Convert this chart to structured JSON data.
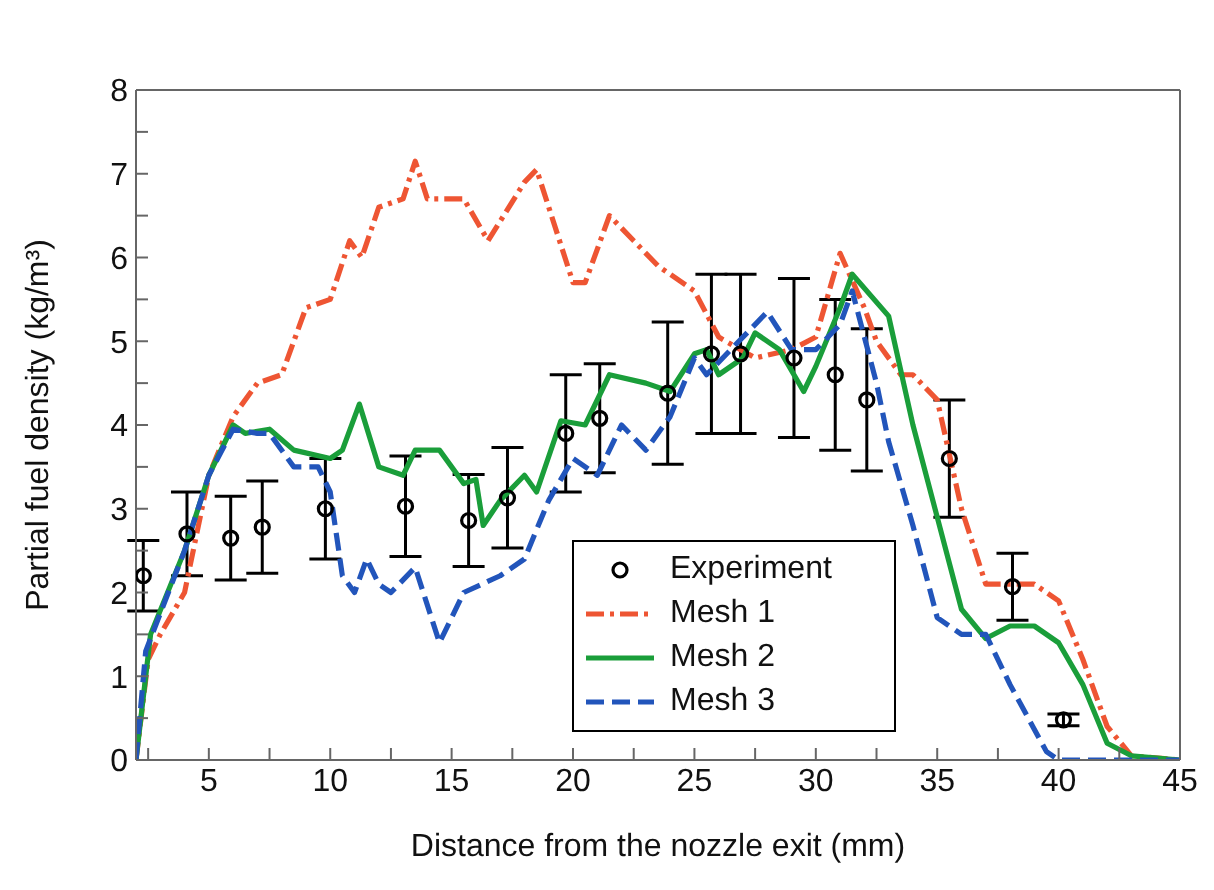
{
  "chart_data": {
    "type": "line",
    "xlabel": "Distance from the nozzle exit (mm)",
    "ylabel": "Partial fuel density (kg/m³)",
    "xlim": [
      2,
      45
    ],
    "ylim": [
      0,
      8
    ],
    "xticks": [
      {
        "value": 2.5,
        "label": null
      },
      5,
      {
        "value": 7.5,
        "label": null
      },
      10,
      {
        "value": 12.5,
        "label": null
      },
      15,
      {
        "value": 17.5,
        "label": null
      },
      20,
      {
        "value": 22.5,
        "label": null
      },
      25,
      {
        "value": 27.5,
        "label": null
      },
      30,
      {
        "value": 32.5,
        "label": null
      },
      35,
      {
        "value": 37.5,
        "label": null
      },
      40,
      {
        "value": 42.5,
        "label": null
      },
      45
    ],
    "yticks": [
      0,
      {
        "value": 0.5,
        "label": null
      },
      1,
      {
        "value": 1.5,
        "label": null
      },
      2,
      {
        "value": 2.5,
        "label": null
      },
      3,
      {
        "value": 3.5,
        "label": null
      },
      4,
      {
        "value": 4.5,
        "label": null
      },
      5,
      {
        "value": 5.5,
        "label": null
      },
      6,
      {
        "value": 6.5,
        "label": null
      },
      7,
      {
        "value": 7.5,
        "label": null
      },
      8
    ],
    "grid": false,
    "legend": "bottom",
    "series": [
      {
        "name": "Experiment",
        "type": "scatter",
        "marker": "circle",
        "color": "#000000",
        "x": [
          2.3,
          4.1,
          5.9,
          7.2,
          9.8,
          13.1,
          15.7,
          17.3,
          19.7,
          21.1,
          23.9,
          25.7,
          26.9,
          29.1,
          30.8,
          32.1,
          35.5,
          38.1,
          40.2
        ],
        "values": [
          2.2,
          2.7,
          2.65,
          2.78,
          3.0,
          3.03,
          2.86,
          3.13,
          3.9,
          4.08,
          4.38,
          4.85,
          4.85,
          4.8,
          4.6,
          4.3,
          3.6,
          2.07,
          0.48
        ],
        "errors": [
          0.42,
          0.5,
          0.5,
          0.55,
          0.6,
          0.6,
          0.55,
          0.6,
          0.7,
          0.65,
          0.85,
          0.95,
          0.95,
          0.95,
          0.9,
          0.85,
          0.7,
          0.4,
          0.07
        ]
      },
      {
        "name": "Mesh 1",
        "marker": "none",
        "line_style": "dashdot",
        "color": "#ee5533",
        "x": [
          2,
          2.5,
          3,
          4,
          5,
          6,
          7,
          8,
          9,
          10,
          10.8,
          11.3,
          12,
          13,
          13.5,
          14,
          15.5,
          16.5,
          18,
          18.5,
          20,
          20.5,
          21.5,
          22.5,
          23.5,
          25,
          26,
          27.5,
          29,
          30,
          31,
          32,
          32.5,
          33.5,
          34,
          35,
          36,
          37,
          38,
          39,
          40,
          41,
          42,
          43,
          45
        ],
        "values": [
          0,
          1.2,
          1.5,
          2.0,
          3.4,
          4.1,
          4.5,
          4.6,
          5.4,
          5.5,
          6.2,
          6.0,
          6.6,
          6.7,
          7.15,
          6.7,
          6.7,
          6.2,
          6.9,
          7.05,
          5.7,
          5.7,
          6.5,
          6.2,
          5.9,
          5.6,
          5.05,
          4.8,
          4.9,
          5.05,
          6.05,
          5.4,
          5.0,
          4.6,
          4.6,
          4.3,
          3.0,
          2.1,
          2.1,
          2.1,
          1.9,
          1.2,
          0.4,
          0.05,
          0
        ]
      },
      {
        "name": "Mesh 2",
        "marker": "none",
        "line_style": "solid",
        "color": "#1a9e3a",
        "x": [
          2,
          2.6,
          4,
          5,
          6,
          6.5,
          7.5,
          8.5,
          10,
          10.5,
          11.2,
          12,
          13,
          13.5,
          14.5,
          15.5,
          16,
          16.3,
          17,
          18,
          18.5,
          19.5,
          20.5,
          21.5,
          23,
          24,
          25,
          25.5,
          26,
          27,
          27.5,
          28.5,
          29.5,
          30,
          31,
          31.5,
          33,
          34,
          35,
          36,
          37,
          38,
          39,
          40,
          41,
          42,
          43,
          45
        ],
        "values": [
          0,
          1.5,
          2.5,
          3.4,
          4.0,
          3.9,
          3.95,
          3.7,
          3.6,
          3.7,
          4.25,
          3.5,
          3.4,
          3.7,
          3.7,
          3.3,
          3.35,
          2.8,
          3.1,
          3.4,
          3.2,
          4.05,
          4.0,
          4.6,
          4.5,
          4.4,
          4.85,
          4.9,
          4.6,
          4.8,
          5.1,
          4.9,
          4.4,
          4.7,
          5.4,
          5.8,
          5.3,
          4.0,
          2.9,
          1.8,
          1.45,
          1.6,
          1.6,
          1.4,
          0.9,
          0.2,
          0.05,
          0
        ]
      },
      {
        "name": "Mesh 3",
        "marker": "none",
        "line_style": "dashed",
        "color": "#2255bb",
        "x": [
          2,
          2.4,
          4,
          5,
          6,
          7,
          7.5,
          8.5,
          9.5,
          10,
          10.5,
          11,
          11.5,
          12,
          12.5,
          13.5,
          14.5,
          15.5,
          17,
          18,
          19,
          20,
          21,
          22,
          23,
          24,
          25,
          25.5,
          26.5,
          28,
          29,
          30,
          31,
          31.5,
          32.5,
          33,
          34,
          35,
          36,
          37,
          38,
          39.5,
          40,
          45
        ],
        "values": [
          0,
          1.3,
          2.5,
          3.4,
          3.95,
          3.9,
          3.9,
          3.5,
          3.5,
          3.2,
          2.2,
          2.0,
          2.4,
          2.1,
          2.0,
          2.3,
          1.4,
          2.0,
          2.2,
          2.4,
          3.1,
          3.6,
          3.4,
          4.0,
          3.7,
          4.1,
          4.8,
          4.6,
          4.9,
          5.35,
          4.9,
          4.9,
          5.2,
          5.6,
          4.5,
          3.8,
          2.8,
          1.7,
          1.5,
          1.5,
          0.9,
          0.1,
          0,
          0
        ]
      }
    ]
  }
}
